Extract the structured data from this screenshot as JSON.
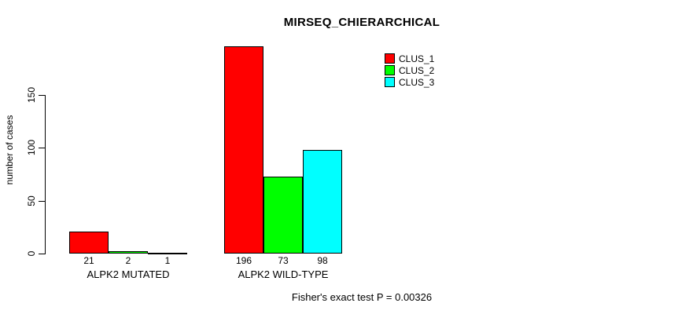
{
  "chart_data": {
    "type": "bar",
    "title": "MIRSEQ_CHIERARCHICAL",
    "ylabel": "number of cases",
    "xlabel": "",
    "ylim": [
      0,
      150
    ],
    "yticks": [
      0,
      50,
      100,
      150
    ],
    "grid": false,
    "legend_position": "top-right",
    "categories": [
      "ALPK2 MUTATED",
      "ALPK2 WILD-TYPE"
    ],
    "series": [
      {
        "name": "CLUS_1",
        "color": "#ff0000",
        "values": [
          21,
          196
        ]
      },
      {
        "name": "CLUS_2",
        "color": "#00ff00",
        "values": [
          2,
          73
        ]
      },
      {
        "name": "CLUS_3",
        "color": "#00ffff",
        "values": [
          1,
          98
        ]
      }
    ],
    "bar_value_labels": [
      [
        "21",
        "2",
        "1"
      ],
      [
        "196",
        "73",
        "98"
      ]
    ],
    "footnote": "Fisher's exact test P = 0.00326"
  }
}
